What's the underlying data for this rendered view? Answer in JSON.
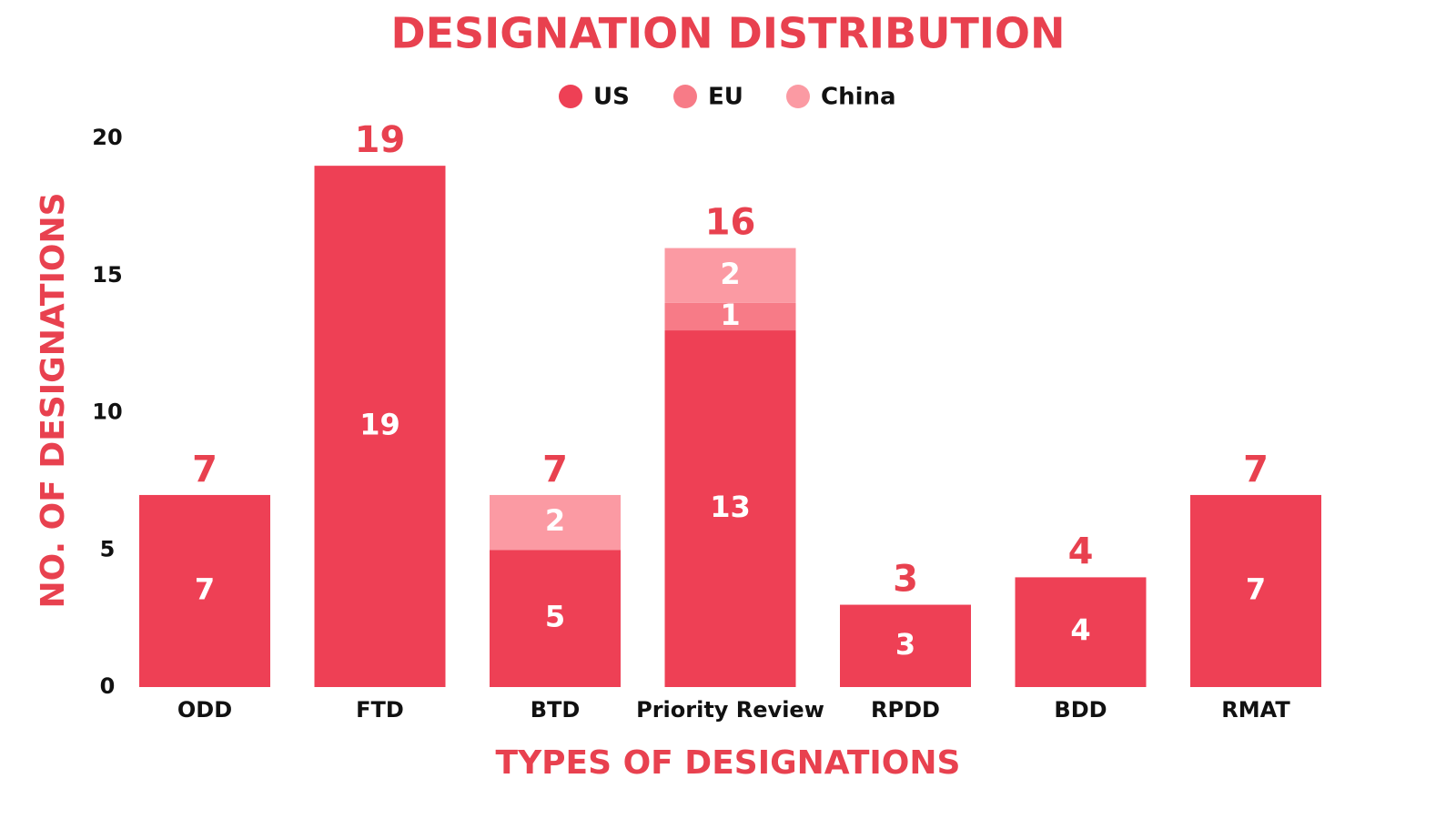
{
  "chart_data": {
    "type": "stacked-bar",
    "title": "DESIGNATION DISTRIBUTION",
    "x_label": "TYPES OF DESIGNATIONS",
    "y_label": "NO. OF DESIGNATIONS",
    "categories": [
      "ODD",
      "FTD",
      "BTD",
      "Priority Review",
      "RPDD",
      "BDD",
      "RMAT"
    ],
    "series": [
      {
        "name": "US",
        "color": "#ee4055",
        "values": [
          7,
          19,
          5,
          13,
          3,
          4,
          7
        ]
      },
      {
        "name": "EU",
        "color": "#f77b87",
        "values": [
          null,
          null,
          null,
          1,
          null,
          null,
          null
        ]
      },
      {
        "name": "China",
        "color": "#fb9aa3",
        "values": [
          null,
          null,
          2,
          2,
          null,
          null,
          null
        ]
      }
    ],
    "totals": [
      7,
      19,
      7,
      16,
      3,
      4,
      7
    ],
    "ylim": [
      0,
      20
    ],
    "yticks": [
      0,
      5,
      10,
      15,
      20
    ],
    "grid": false,
    "legend": "top"
  }
}
